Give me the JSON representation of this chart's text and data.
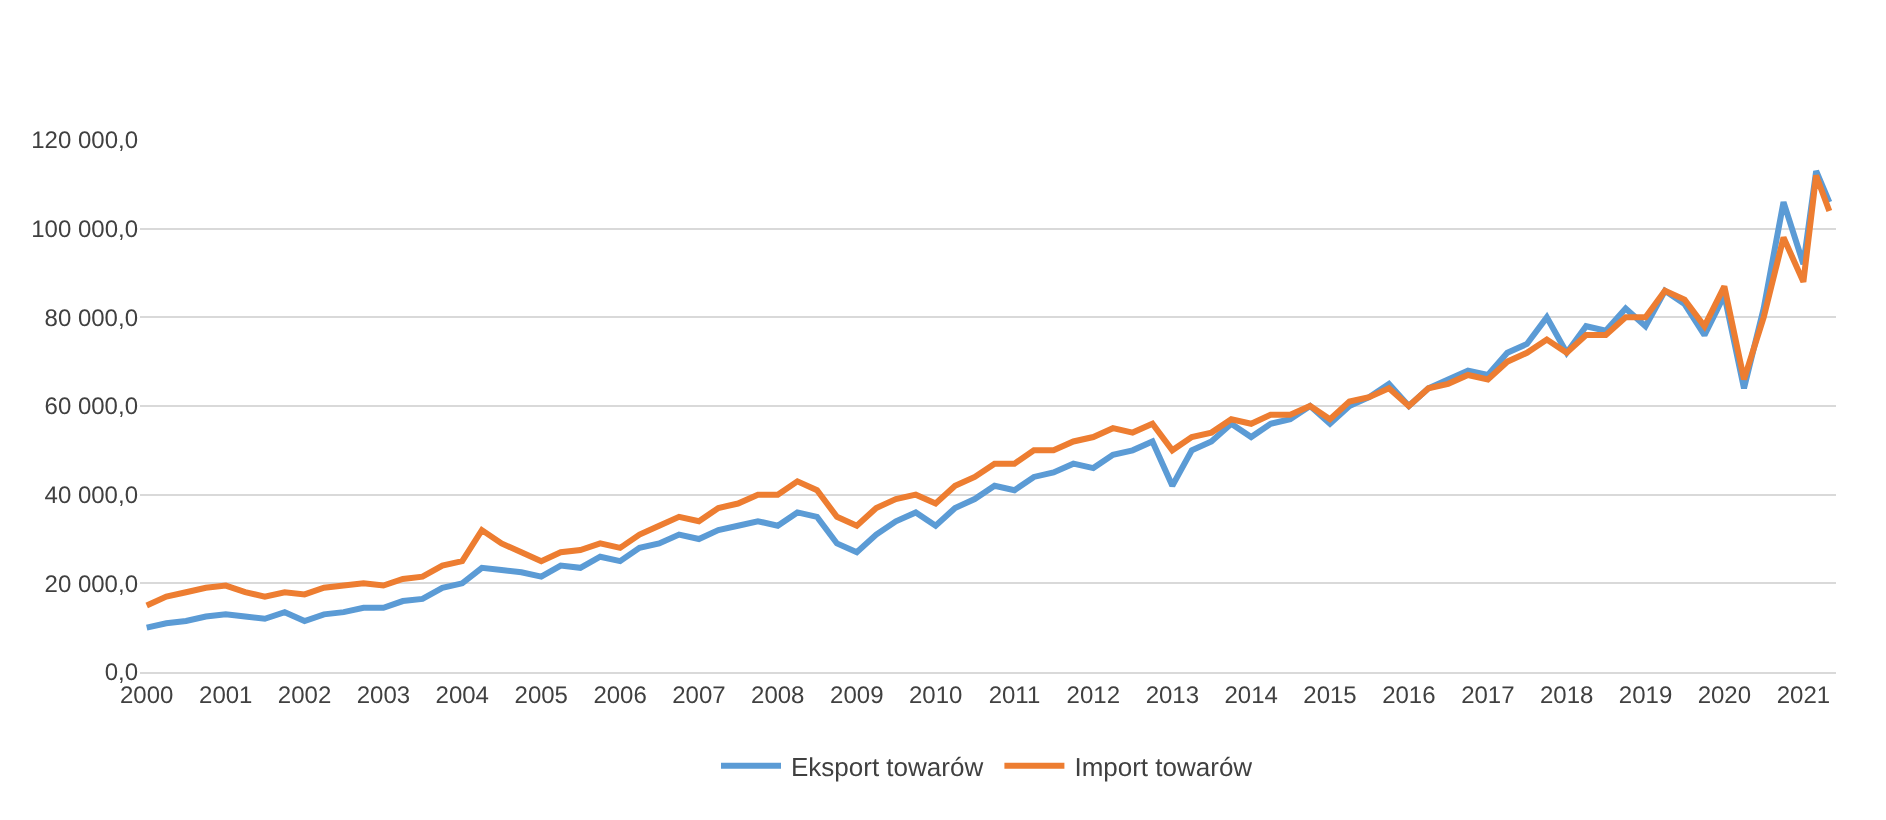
{
  "chart_data": {
    "type": "line",
    "x": [
      "2000-01",
      "2000-04",
      "2000-07",
      "2000-10",
      "2001-01",
      "2001-04",
      "2001-07",
      "2001-10",
      "2002-01",
      "2002-04",
      "2002-07",
      "2002-10",
      "2003-01",
      "2003-04",
      "2003-07",
      "2003-10",
      "2004-01",
      "2004-04",
      "2004-07",
      "2004-10",
      "2005-01",
      "2005-04",
      "2005-07",
      "2005-10",
      "2006-01",
      "2006-04",
      "2006-07",
      "2006-10",
      "2007-01",
      "2007-04",
      "2007-07",
      "2007-10",
      "2008-01",
      "2008-04",
      "2008-07",
      "2008-10",
      "2009-01",
      "2009-04",
      "2009-07",
      "2009-10",
      "2010-01",
      "2010-04",
      "2010-07",
      "2010-10",
      "2011-01",
      "2011-04",
      "2011-07",
      "2011-10",
      "2012-01",
      "2012-04",
      "2012-07",
      "2012-10",
      "2013-01",
      "2013-04",
      "2013-07",
      "2013-10",
      "2014-01",
      "2014-04",
      "2014-07",
      "2014-10",
      "2015-01",
      "2015-04",
      "2015-07",
      "2015-10",
      "2016-01",
      "2016-04",
      "2016-07",
      "2016-10",
      "2017-01",
      "2017-04",
      "2017-07",
      "2017-10",
      "2018-01",
      "2018-04",
      "2018-07",
      "2018-10",
      "2019-01",
      "2019-04",
      "2019-07",
      "2019-10",
      "2020-01",
      "2020-04",
      "2020-07",
      "2020-10",
      "2021-01",
      "2021-03",
      "2021-05"
    ],
    "series": [
      {
        "name": "Eksport towarów",
        "color": "#5b9bd5",
        "values": [
          10000,
          11000,
          11500,
          12500,
          13000,
          12500,
          12000,
          13500,
          11500,
          13000,
          13500,
          14500,
          14500,
          16000,
          16500,
          19000,
          20000,
          23500,
          23000,
          22500,
          21500,
          24000,
          23500,
          26000,
          25000,
          28000,
          29000,
          31000,
          30000,
          32000,
          33000,
          34000,
          33000,
          36000,
          35000,
          29000,
          27000,
          31000,
          34000,
          36000,
          33000,
          37000,
          39000,
          42000,
          41000,
          44000,
          45000,
          47000,
          46000,
          49000,
          50000,
          52000,
          42000,
          50000,
          52000,
          56000,
          53000,
          56000,
          57000,
          60000,
          56000,
          60000,
          62000,
          65000,
          60000,
          64000,
          66000,
          68000,
          67000,
          72000,
          74000,
          80000,
          72000,
          78000,
          77000,
          82000,
          78000,
          86000,
          83000,
          76000,
          85000,
          64000,
          82000,
          106000,
          92000,
          113000,
          106000
        ]
      },
      {
        "name": "Import towarów",
        "color": "#ed7d31",
        "values": [
          15000,
          17000,
          18000,
          19000,
          19500,
          18000,
          17000,
          18000,
          17500,
          19000,
          19500,
          20000,
          19500,
          21000,
          21500,
          24000,
          25000,
          32000,
          29000,
          27000,
          25000,
          27000,
          27500,
          29000,
          28000,
          31000,
          33000,
          35000,
          34000,
          37000,
          38000,
          40000,
          40000,
          43000,
          41000,
          35000,
          33000,
          37000,
          39000,
          40000,
          38000,
          42000,
          44000,
          47000,
          47000,
          50000,
          50000,
          52000,
          53000,
          55000,
          54000,
          56000,
          50000,
          53000,
          54000,
          57000,
          56000,
          58000,
          58000,
          60000,
          57000,
          61000,
          62000,
          64000,
          60000,
          64000,
          65000,
          67000,
          66000,
          70000,
          72000,
          75000,
          72000,
          76000,
          76000,
          80000,
          80000,
          86000,
          84000,
          78000,
          87000,
          66000,
          80000,
          98000,
          88000,
          112000,
          104000
        ]
      }
    ],
    "xlim": [
      "1999-12",
      "2021-06"
    ],
    "xticks": [
      "2000",
      "2001",
      "2002",
      "2003",
      "2004",
      "2005",
      "2006",
      "2007",
      "2008",
      "2009",
      "2010",
      "2011",
      "2012",
      "2013",
      "2014",
      "2015",
      "2016",
      "2017",
      "2018",
      "2019",
      "2020",
      "2021"
    ],
    "ylim": [
      0,
      120000
    ],
    "yticks": [
      {
        "value": 0,
        "label": "0,0"
      },
      {
        "value": 20000,
        "label": "20 000,0"
      },
      {
        "value": 40000,
        "label": "40 000,0"
      },
      {
        "value": 60000,
        "label": "60 000,0"
      },
      {
        "value": 80000,
        "label": "80 000,0"
      },
      {
        "value": 100000,
        "label": "100 000,0"
      },
      {
        "value": 120000,
        "label": "120 000,0"
      }
    ],
    "grid": "y",
    "legend": "bottom",
    "marker": "none",
    "line_style": "solid"
  }
}
